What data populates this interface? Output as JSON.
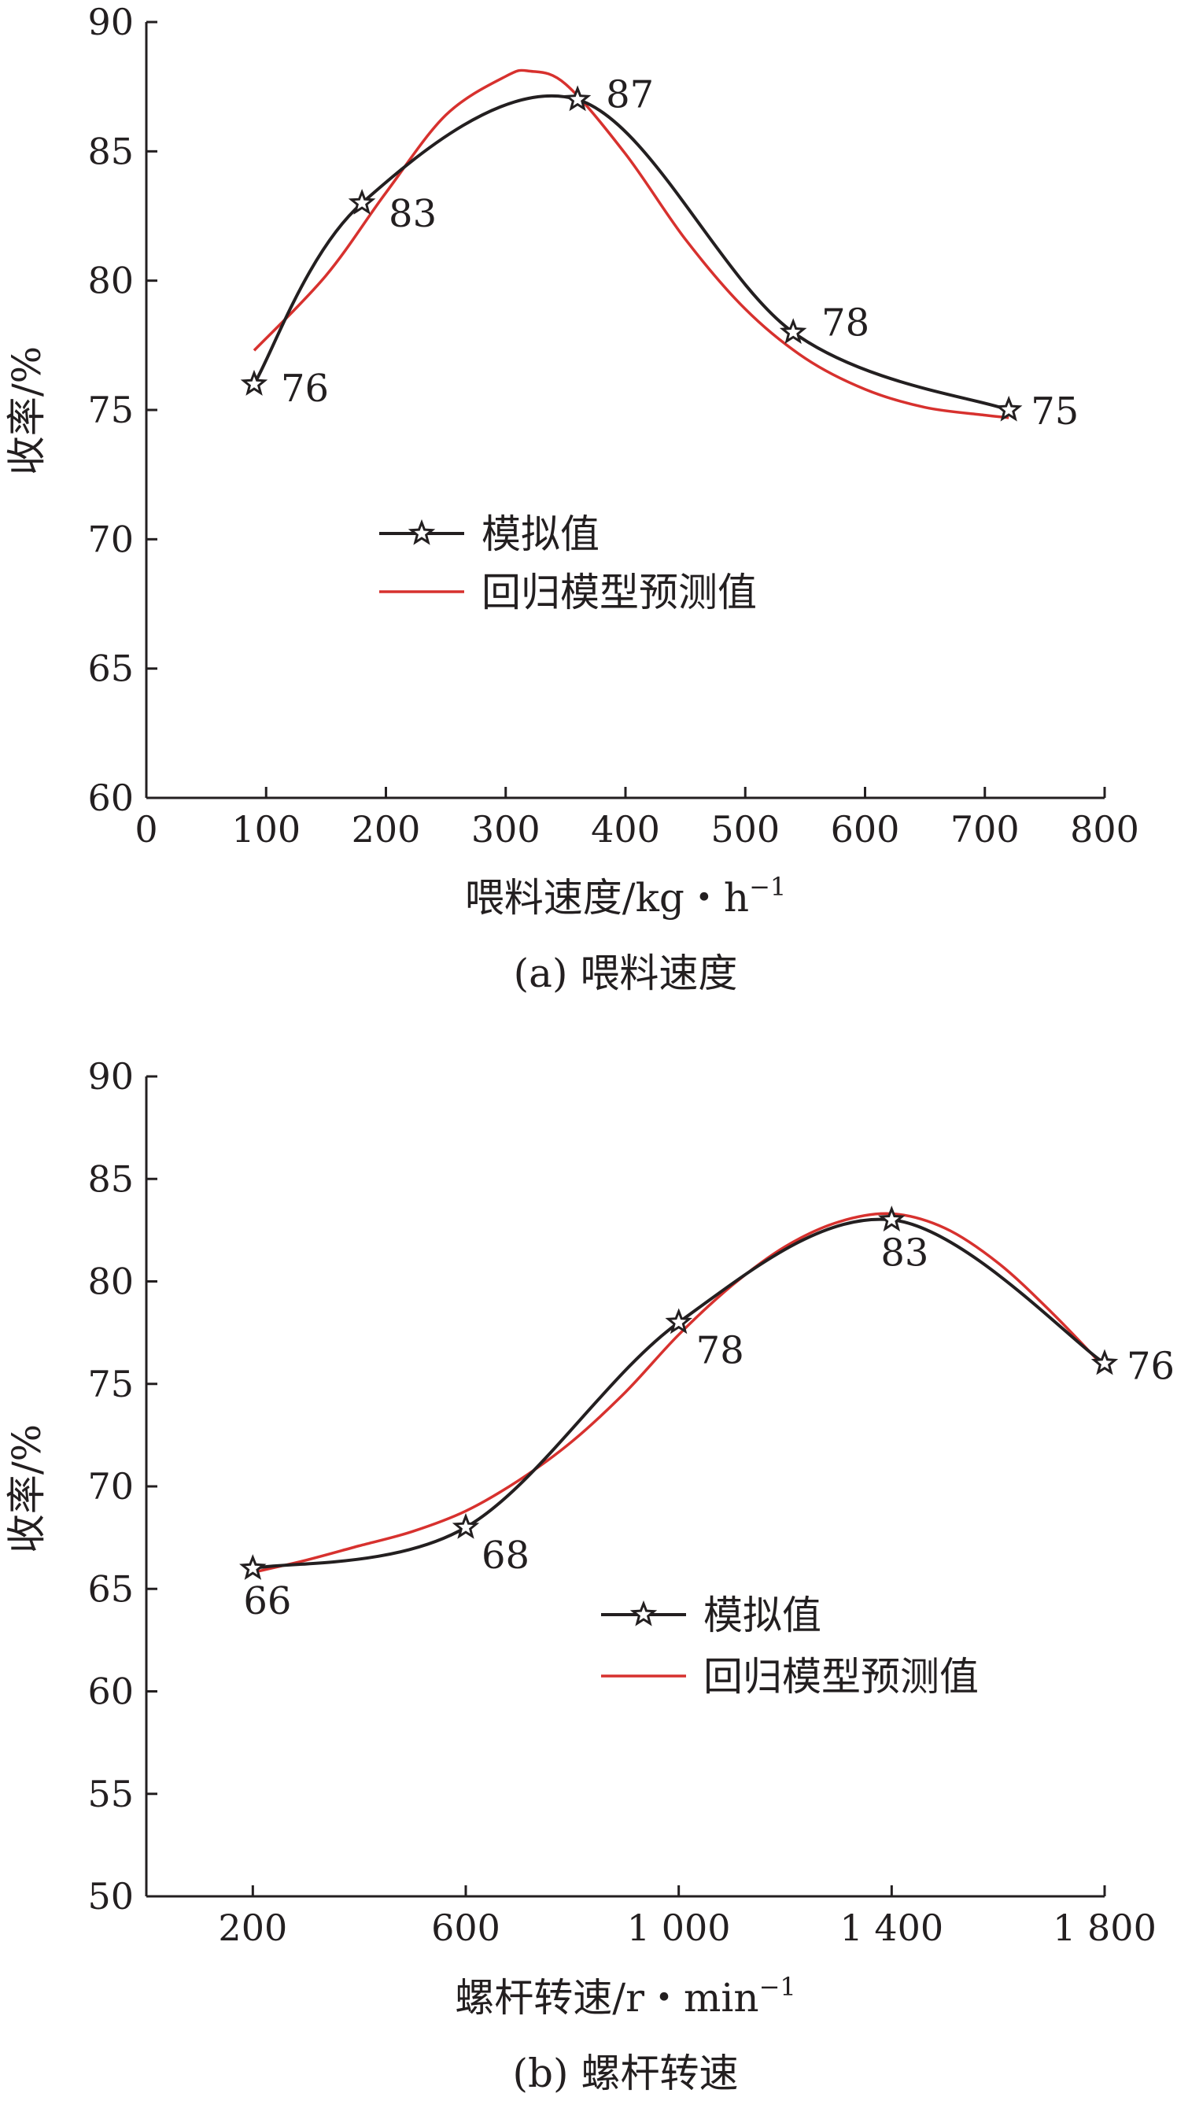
{
  "chart_data": [
    {
      "type": "line",
      "caption": "(a) 喂料速度",
      "xlabel": "喂料速度/kg・h",
      "xlabel_sup": "−1",
      "ylabel": "收率/%",
      "xlim": [
        0,
        800
      ],
      "ylim": [
        60,
        90
      ],
      "xticks": [
        0,
        100,
        200,
        300,
        400,
        500,
        600,
        700,
        800
      ],
      "xtick_labels": [
        "0",
        "100",
        "200",
        "300",
        "400",
        "500",
        "600",
        "700",
        "800"
      ],
      "yticks": [
        60,
        65,
        70,
        75,
        80,
        85,
        90
      ],
      "ytick_labels": [
        "60",
        "65",
        "70",
        "75",
        "80",
        "85",
        "90"
      ],
      "grid": false,
      "legend_position": "center",
      "series": [
        {
          "name": "模拟值",
          "color": "#231f20",
          "marker": "star",
          "x": [
            90,
            180,
            360,
            540,
            720
          ],
          "y": [
            76,
            83,
            87,
            78,
            75
          ],
          "point_labels": [
            "76",
            "83",
            "87",
            "78",
            "75"
          ]
        },
        {
          "name": "回归模型预测值",
          "color": "#d7312e",
          "marker": "none",
          "x": [
            90,
            150,
            200,
            250,
            300,
            320,
            350,
            400,
            450,
            500,
            550,
            600,
            650,
            700,
            720
          ],
          "y": [
            77.3,
            80.2,
            83.4,
            86.4,
            87.9,
            88.1,
            87.6,
            84.9,
            81.6,
            78.9,
            77.0,
            75.8,
            75.1,
            74.8,
            74.7
          ]
        }
      ]
    },
    {
      "type": "line",
      "caption": "(b) 螺杆转速",
      "xlabel": "螺杆转速/r・min",
      "xlabel_sup": "−1",
      "ylabel": "收率/%",
      "xlim": [
        0,
        1800
      ],
      "ylim": [
        50,
        90
      ],
      "xticks": [
        200,
        600,
        1000,
        1400,
        1800
      ],
      "xtick_labels": [
        "200",
        "600",
        "1 000",
        "1 400",
        "1 800"
      ],
      "yticks": [
        50,
        55,
        60,
        65,
        70,
        75,
        80,
        85,
        90
      ],
      "ytick_labels": [
        "50",
        "55",
        "60",
        "65",
        "70",
        "75",
        "80",
        "85",
        "90"
      ],
      "grid": false,
      "legend_position": "center-right",
      "series": [
        {
          "name": "模拟值",
          "color": "#231f20",
          "marker": "star",
          "x": [
            200,
            600,
            1000,
            1400,
            1800
          ],
          "y": [
            66,
            68,
            78,
            83,
            76
          ],
          "point_labels": [
            "66",
            "68",
            "78",
            "83",
            "76"
          ]
        },
        {
          "name": "回归模型预测值",
          "color": "#d7312e",
          "marker": "none",
          "x": [
            200,
            300,
            400,
            500,
            600,
            700,
            800,
            900,
            1000,
            1100,
            1200,
            1300,
            1400,
            1500,
            1600,
            1700,
            1800
          ],
          "y": [
            65.8,
            66.4,
            67.1,
            67.8,
            68.8,
            70.3,
            72.2,
            74.6,
            77.4,
            79.8,
            81.7,
            82.9,
            83.3,
            82.6,
            80.9,
            78.5,
            75.8
          ]
        }
      ]
    }
  ]
}
